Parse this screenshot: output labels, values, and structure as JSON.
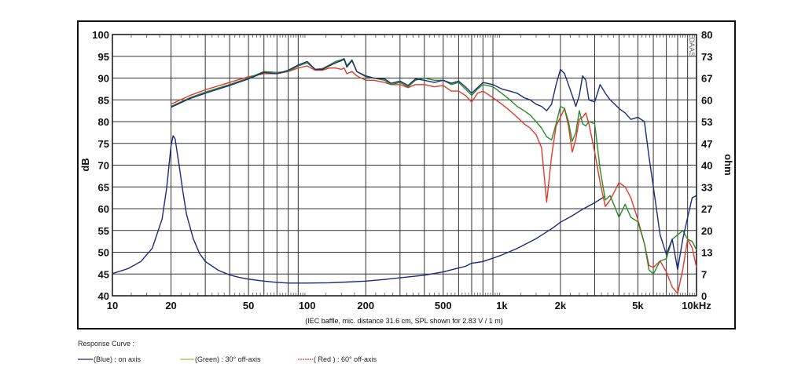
{
  "chart_data": {
    "type": "line",
    "x_scale": "log",
    "xlim": [
      10,
      10000
    ],
    "ylim_left": [
      40,
      100
    ],
    "ylim_right": [
      0,
      80
    ],
    "grid": true,
    "x_ticks": [
      "10",
      "20",
      "50",
      "100",
      "200",
      "500",
      "1k",
      "2k",
      "5k",
      "10kHz"
    ],
    "x_tick_values": [
      10,
      20,
      50,
      100,
      200,
      500,
      1000,
      2000,
      5000,
      10000
    ],
    "y_left_ticks": [
      "100",
      "95",
      "90",
      "85",
      "80",
      "75",
      "70",
      "65",
      "60",
      "55",
      "50",
      "45",
      "40"
    ],
    "y_right_ticks": [
      "80",
      "73",
      "67",
      "60",
      "53",
      "47",
      "40",
      "33",
      "27",
      "20",
      "13",
      "7",
      "0"
    ],
    "ylabel_left": "dB",
    "ylabel_right": "ohm",
    "note": "(IEC baffle, mic. distance 31.6 cm, SPL shown for 2.83 V / 1 m)",
    "brand": "DAAS",
    "series": [
      {
        "name": "(Blue)  : on axis",
        "color": "#1c2a7a",
        "kind": "spl",
        "x": [
          20,
          25,
          30,
          40,
          50,
          60,
          70,
          80,
          90,
          100,
          110,
          120,
          130,
          140,
          150,
          155,
          160,
          170,
          180,
          200,
          220,
          250,
          270,
          300,
          330,
          360,
          400,
          450,
          500,
          550,
          600,
          650,
          700,
          750,
          800,
          900,
          1000,
          1100,
          1200,
          1300,
          1400,
          1500,
          1600,
          1700,
          1800,
          1900,
          2000,
          2100,
          2200,
          2300,
          2400,
          2500,
          2600,
          2700,
          2800,
          3000,
          3200,
          3400,
          3600,
          3800,
          4000,
          4300,
          4600,
          5000,
          5400,
          5700,
          6000,
          6500,
          7000,
          7500,
          8000,
          8500,
          9000,
          9500,
          10000
        ],
        "values": [
          83.3,
          85.3,
          86.5,
          88.3,
          89.8,
          91.3,
          91.0,
          91.8,
          93.0,
          93.8,
          92.0,
          92.0,
          92.8,
          93.5,
          94.0,
          94.3,
          92.5,
          94.0,
          91.5,
          90.5,
          90.0,
          89.8,
          88.8,
          89.3,
          88.3,
          89.8,
          89.5,
          89.0,
          89.5,
          88.8,
          89.3,
          88.0,
          86.5,
          87.8,
          89.0,
          88.5,
          87.5,
          87.0,
          86.5,
          85.5,
          85.0,
          84.0,
          83.5,
          82.5,
          84.0,
          88.5,
          92.0,
          91.0,
          88.5,
          86.0,
          83.5,
          86.0,
          90.5,
          89.5,
          85.0,
          84.5,
          88.5,
          86.5,
          85.0,
          84.0,
          83.0,
          82.0,
          80.5,
          81.0,
          80.0,
          72.0,
          65.0,
          54.0,
          49.5,
          53.0,
          46.0,
          53.0,
          58.0,
          62.5,
          63.0
        ]
      },
      {
        "name": "(Green) : 30° off-axis",
        "color": "#2a8a2a",
        "kind": "spl",
        "x": [
          20,
          25,
          30,
          40,
          50,
          60,
          70,
          80,
          90,
          100,
          110,
          120,
          130,
          140,
          150,
          155,
          160,
          170,
          180,
          200,
          220,
          250,
          270,
          300,
          330,
          360,
          400,
          450,
          500,
          550,
          600,
          650,
          700,
          750,
          800,
          900,
          1000,
          1100,
          1200,
          1300,
          1400,
          1500,
          1600,
          1700,
          1800,
          1900,
          2000,
          2100,
          2200,
          2300,
          2400,
          2500,
          2600,
          2700,
          2800,
          3000,
          3200,
          3400,
          3600,
          3800,
          4000,
          4300,
          4600,
          5000,
          5400,
          5700,
          6000,
          6500,
          7000,
          7500,
          8000,
          8500,
          9000,
          9500,
          10000
        ],
        "values": [
          83.5,
          85.5,
          86.8,
          88.5,
          90.0,
          91.5,
          91.3,
          91.5,
          92.8,
          93.5,
          92.0,
          92.2,
          93.0,
          93.8,
          94.2,
          94.5,
          92.8,
          94.2,
          91.5,
          90.3,
          90.0,
          89.5,
          88.5,
          89.0,
          88.0,
          89.5,
          90.0,
          89.5,
          89.5,
          88.5,
          89.0,
          87.5,
          86.0,
          87.5,
          88.5,
          88.0,
          86.5,
          85.0,
          83.5,
          82.5,
          81.5,
          80.0,
          78.5,
          76.5,
          75.8,
          79.5,
          83.5,
          83.0,
          80.0,
          75.5,
          77.5,
          82.5,
          79.5,
          79.0,
          80.0,
          79.5,
          69.0,
          62.0,
          63.0,
          60.5,
          58.0,
          61.0,
          58.0,
          57.0,
          52.0,
          46.0,
          45.0,
          48.0,
          48.5,
          53.0,
          54.0,
          55.0,
          53.0,
          52.5,
          50.5
        ]
      },
      {
        "name": "( Red ) : 60° off-axis",
        "color": "#e23a2a",
        "kind": "spl",
        "x": [
          20,
          25,
          30,
          40,
          50,
          60,
          70,
          80,
          90,
          100,
          110,
          120,
          130,
          140,
          150,
          155,
          160,
          170,
          180,
          200,
          220,
          250,
          270,
          300,
          330,
          360,
          400,
          450,
          500,
          550,
          600,
          650,
          700,
          750,
          800,
          900,
          1000,
          1100,
          1200,
          1300,
          1400,
          1500,
          1600,
          1700,
          1800,
          1900,
          2000,
          2100,
          2200,
          2300,
          2400,
          2500,
          2600,
          2700,
          2800,
          3000,
          3200,
          3400,
          3600,
          3800,
          4000,
          4300,
          4600,
          5000,
          5400,
          5700,
          6000,
          6500,
          7000,
          7500,
          8000,
          8500,
          9000,
          9500,
          10000
        ],
        "values": [
          84.0,
          86.0,
          87.3,
          89.0,
          90.3,
          91.0,
          91.0,
          91.5,
          92.3,
          92.8,
          91.8,
          91.8,
          92.3,
          92.3,
          92.0,
          92.3,
          91.0,
          91.5,
          90.5,
          89.5,
          89.5,
          89.0,
          88.5,
          88.5,
          87.8,
          88.5,
          88.5,
          88.0,
          88.3,
          87.0,
          87.0,
          86.0,
          84.5,
          86.5,
          87.0,
          85.5,
          84.0,
          82.5,
          81.0,
          79.5,
          78.5,
          77.0,
          74.0,
          61.5,
          72.0,
          79.0,
          81.0,
          83.0,
          79.0,
          73.0,
          76.0,
          80.5,
          81.0,
          82.0,
          79.5,
          73.0,
          66.0,
          60.5,
          62.0,
          64.0,
          66.0,
          65.0,
          62.5,
          57.5,
          52.0,
          47.0,
          46.5,
          48.0,
          45.5,
          42.0,
          40.5,
          46.0,
          53.0,
          51.0,
          46.5
        ]
      },
      {
        "name": "Impedance",
        "color": "#1c2a7a",
        "kind": "impedance",
        "x": [
          10,
          12,
          14,
          16,
          18,
          19,
          20,
          20.5,
          21,
          22,
          23,
          24,
          26,
          28,
          30,
          35,
          40,
          45,
          50,
          60,
          70,
          80,
          100,
          130,
          160,
          200,
          250,
          300,
          400,
          500,
          600,
          650,
          700,
          750,
          800,
          900,
          1000,
          1200,
          1500,
          1800,
          2000,
          2300,
          2600,
          3000,
          3400
        ],
        "values": [
          6.8,
          8.3,
          10.5,
          14.5,
          23.5,
          33.0,
          46.0,
          49.0,
          48.0,
          40.0,
          32.0,
          25.0,
          17.5,
          13.0,
          10.5,
          7.8,
          6.4,
          5.6,
          5.1,
          4.5,
          4.1,
          3.9,
          3.9,
          4.0,
          4.2,
          4.5,
          5.0,
          5.5,
          6.3,
          7.3,
          8.5,
          9.0,
          10.0,
          10.2,
          10.5,
          11.5,
          12.5,
          14.5,
          17.5,
          20.5,
          22.5,
          24.5,
          26.5,
          28.5,
          30.5
        ]
      }
    ]
  },
  "legend": {
    "title": "Response Curve :",
    "items": [
      {
        "label": "(Blue)  : on axis",
        "color": "#1c2a7a"
      },
      {
        "label": "(Green) : 30° off-axis",
        "color": "#8ac63a"
      },
      {
        "label": "( Red ) : 60° off-axis",
        "color": "#e23a2a"
      }
    ]
  }
}
